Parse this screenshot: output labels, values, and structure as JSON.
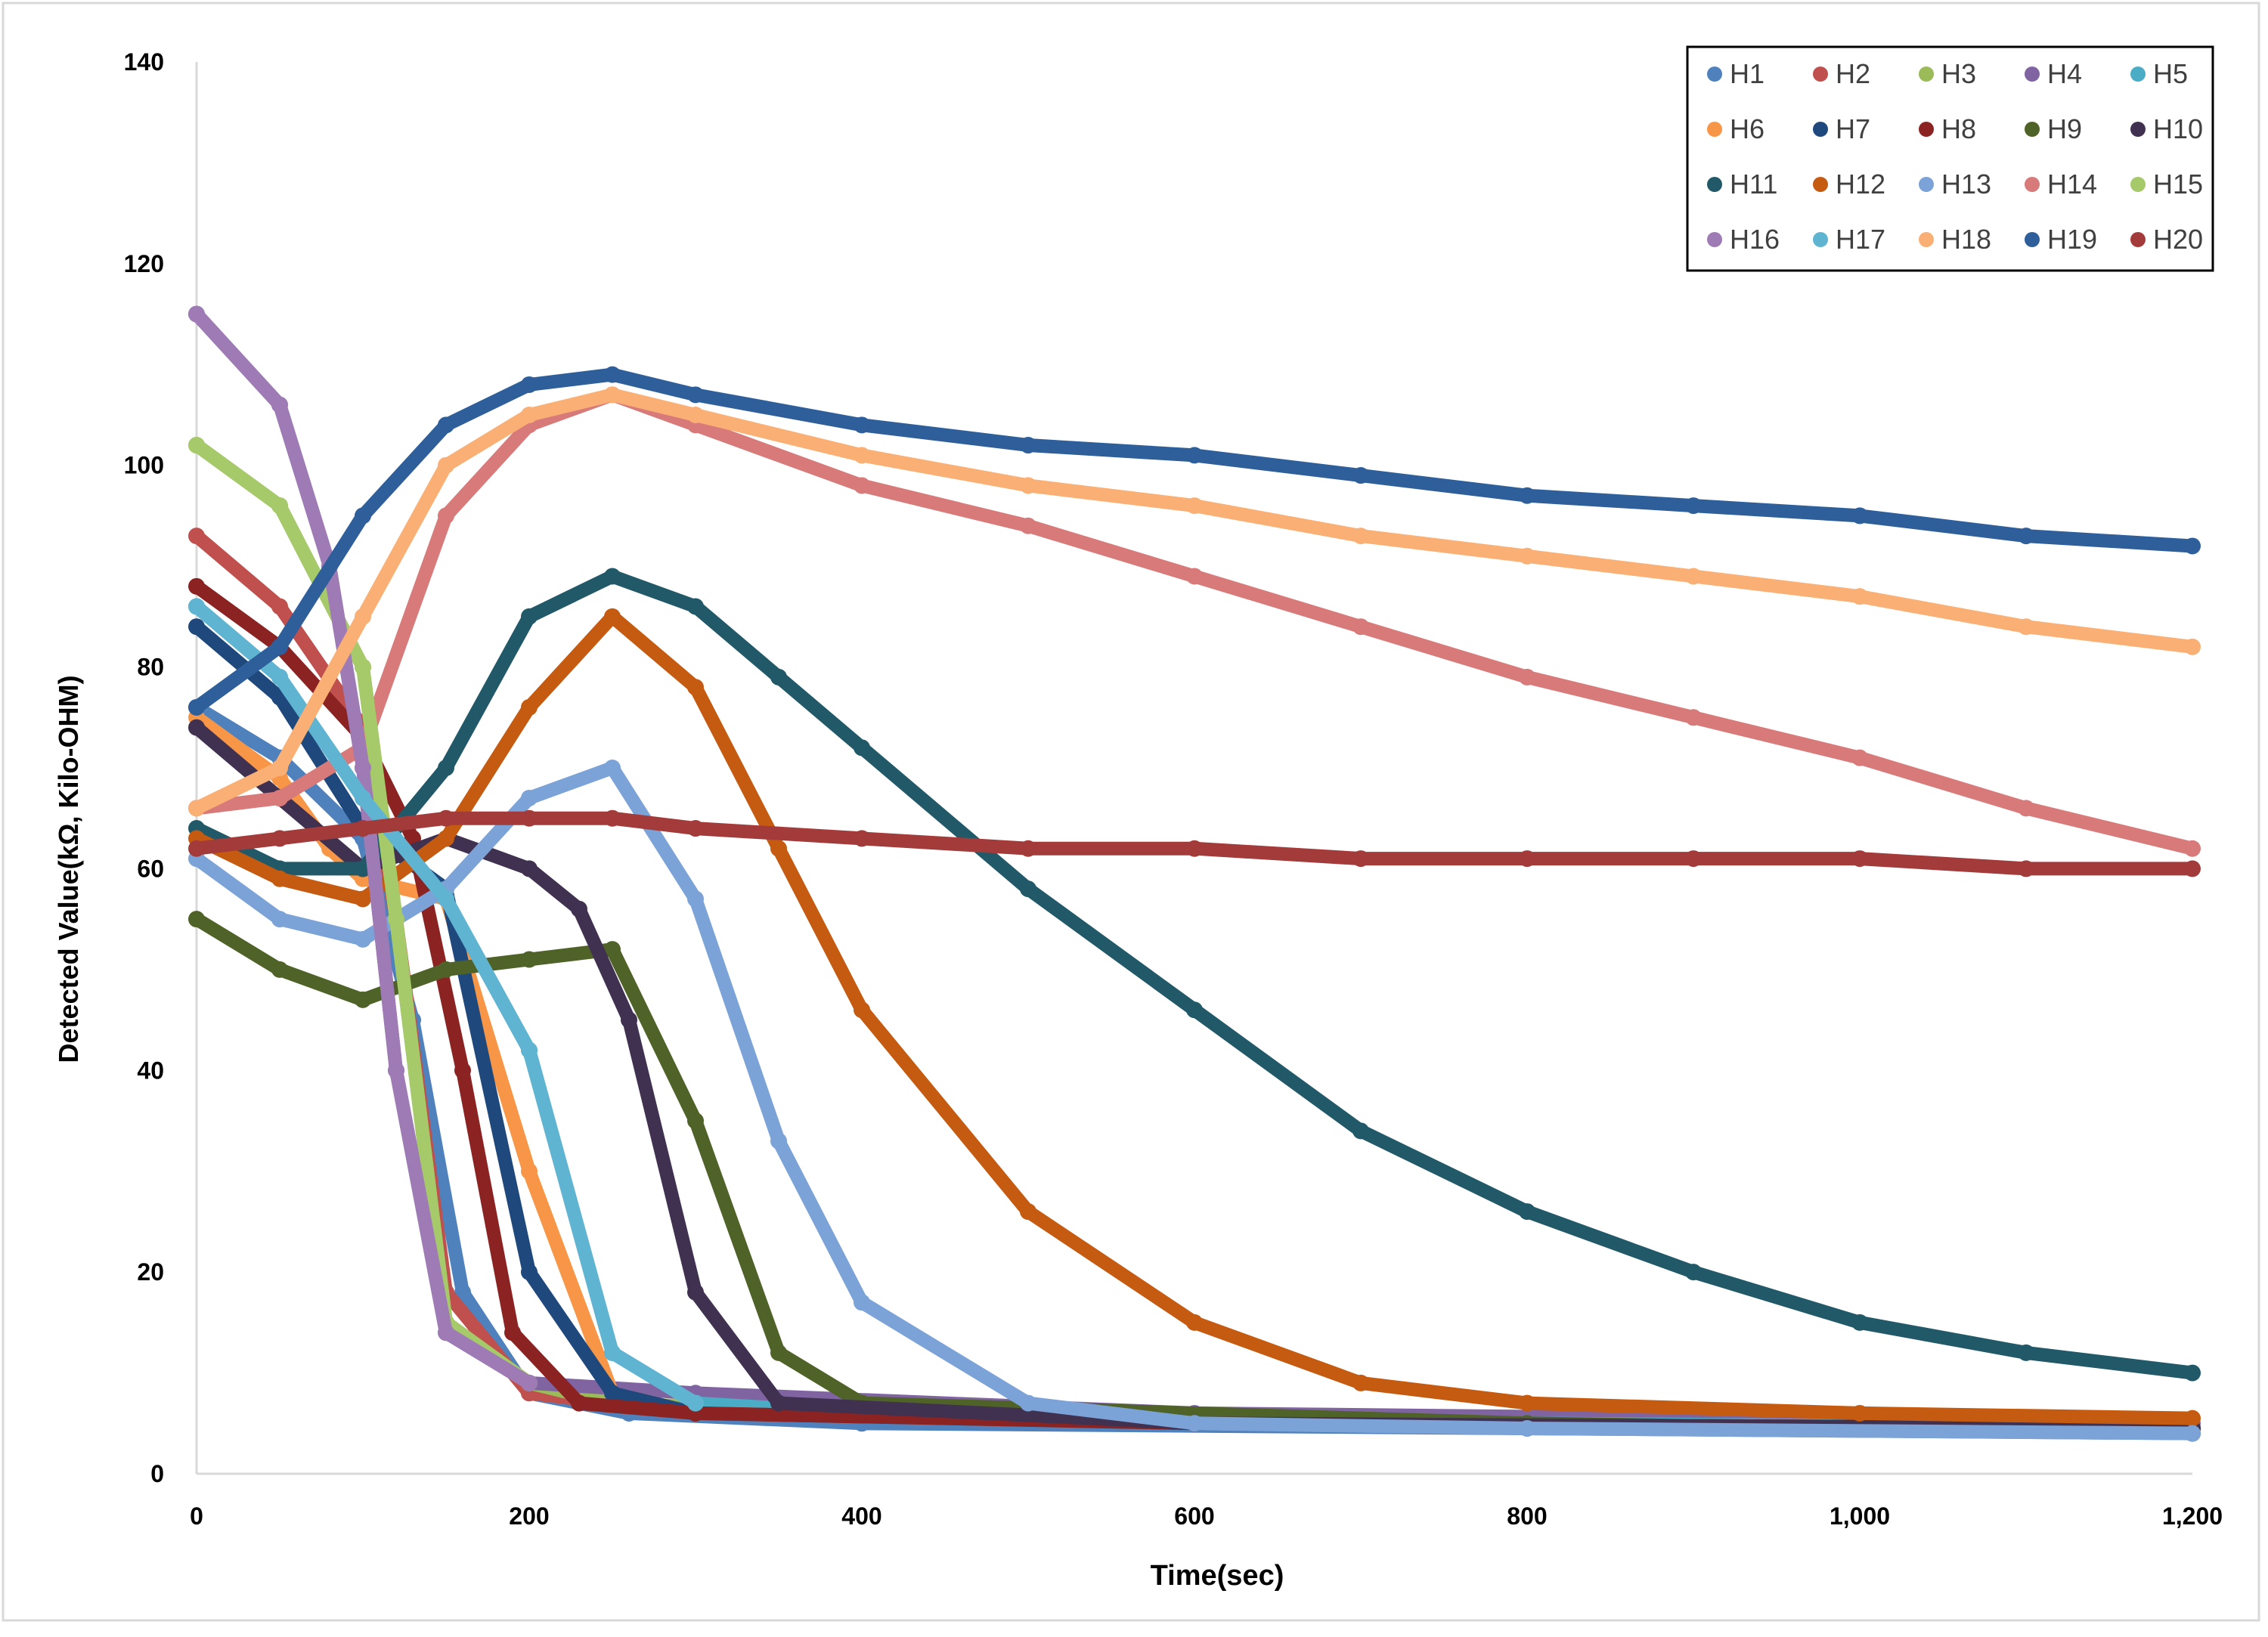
{
  "chart_data": {
    "type": "scatter",
    "title": "",
    "xlabel": "Time(sec)",
    "ylabel": "Detected Value(kΩ, Kilo-OHM)",
    "xlim": [
      0,
      1200
    ],
    "ylim": [
      0,
      140
    ],
    "x_ticks": [
      0,
      200,
      400,
      600,
      800,
      1000,
      1200
    ],
    "x_tick_labels": [
      "0",
      "200",
      "400",
      "600",
      "800",
      "1,000",
      "1,200"
    ],
    "y_ticks": [
      0,
      20,
      40,
      60,
      80,
      100,
      120,
      140
    ],
    "y_tick_labels": [
      "0",
      "20",
      "40",
      "60",
      "80",
      "100",
      "120",
      "140"
    ],
    "grid": false,
    "legend_position": "top-right",
    "series": [
      {
        "name": "H1",
        "color": "#4f81bd",
        "x": [
          0,
          50,
          100,
          130,
          160,
          200,
          260,
          400,
          800,
          1200
        ],
        "y": [
          76,
          71,
          63,
          45,
          18,
          8,
          6,
          5,
          4.5,
          4
        ]
      },
      {
        "name": "H2",
        "color": "#c0504d",
        "x": [
          0,
          50,
          100,
          120,
          150,
          200,
          250,
          400,
          800,
          1200
        ],
        "y": [
          93,
          86,
          74,
          55,
          18,
          8,
          7,
          6,
          5,
          4.5
        ]
      },
      {
        "name": "H3",
        "color": "#9bbb59",
        "x": [
          0,
          50,
          100,
          120,
          150,
          200,
          250,
          400,
          800,
          1200
        ],
        "y": [
          102,
          96,
          80,
          55,
          15,
          9,
          7,
          6,
          5,
          4.5
        ]
      },
      {
        "name": "H4",
        "color": "#8064a2",
        "x": [
          0,
          50,
          80,
          100,
          120,
          150,
          200,
          300,
          600,
          1200
        ],
        "y": [
          115,
          106,
          90,
          70,
          40,
          14,
          9,
          8,
          6,
          5
        ]
      },
      {
        "name": "H5",
        "color": "#4bacc6",
        "x": [
          0,
          50,
          100,
          150,
          200,
          250,
          300,
          400,
          800,
          1200
        ],
        "y": [
          86,
          79,
          67,
          57,
          42,
          12,
          7,
          6,
          5,
          4.5
        ]
      },
      {
        "name": "H6",
        "color": "#f79646",
        "x": [
          0,
          50,
          80,
          100,
          150,
          200,
          250,
          300,
          600,
          1200
        ],
        "y": [
          75,
          69,
          62,
          59,
          57,
          30,
          8,
          6,
          5,
          4.5
        ]
      },
      {
        "name": "H7",
        "color": "#1f497d",
        "x": [
          0,
          50,
          100,
          150,
          200,
          250,
          300,
          600,
          1200
        ],
        "y": [
          84,
          77,
          64,
          58,
          20,
          8,
          6,
          5,
          4.5
        ]
      },
      {
        "name": "H8",
        "color": "#8b2323",
        "x": [
          0,
          50,
          100,
          130,
          160,
          190,
          230,
          300,
          600,
          1200
        ],
        "y": [
          88,
          82,
          73,
          63,
          40,
          14,
          7,
          6,
          5,
          4.5
        ]
      },
      {
        "name": "H9",
        "color": "#4f6228",
        "x": [
          0,
          50,
          100,
          150,
          200,
          250,
          300,
          350,
          400,
          800,
          1200
        ],
        "y": [
          55,
          50,
          47,
          50,
          51,
          52,
          35,
          12,
          7,
          5,
          4
        ]
      },
      {
        "name": "H10",
        "color": "#403151",
        "x": [
          0,
          50,
          100,
          150,
          200,
          230,
          260,
          300,
          350,
          600,
          1200
        ],
        "y": [
          74,
          67,
          60,
          63,
          60,
          56,
          45,
          18,
          7,
          5,
          4.5
        ]
      },
      {
        "name": "H11",
        "color": "#215968",
        "x": [
          0,
          50,
          100,
          150,
          200,
          250,
          300,
          350,
          400,
          500,
          600,
          700,
          800,
          900,
          1000,
          1100,
          1200
        ],
        "y": [
          64,
          60,
          60,
          70,
          85,
          89,
          86,
          79,
          72,
          58,
          46,
          34,
          26,
          20,
          15,
          12,
          10
        ]
      },
      {
        "name": "H12",
        "color": "#c55a11",
        "x": [
          0,
          50,
          100,
          150,
          200,
          250,
          300,
          350,
          400,
          500,
          600,
          700,
          800,
          1000,
          1200
        ],
        "y": [
          63,
          59,
          57,
          63,
          76,
          85,
          78,
          62,
          46,
          26,
          15,
          9,
          7,
          6,
          5.5
        ]
      },
      {
        "name": "H13",
        "color": "#7ca3d8",
        "x": [
          0,
          50,
          100,
          150,
          200,
          250,
          300,
          350,
          400,
          500,
          600,
          800,
          1200
        ],
        "y": [
          61,
          55,
          53,
          58,
          67,
          70,
          57,
          33,
          17,
          7,
          5,
          4.5,
          4
        ]
      },
      {
        "name": "H14",
        "color": "#d97a7a",
        "x": [
          0,
          50,
          100,
          150,
          200,
          250,
          300,
          400,
          500,
          600,
          700,
          800,
          900,
          1000,
          1100,
          1200
        ],
        "y": [
          66,
          67,
          72,
          95,
          104,
          107,
          104,
          98,
          94,
          89,
          84,
          79,
          75,
          71,
          66,
          62
        ]
      },
      {
        "name": "H15",
        "color": "#a6c96a",
        "x": [
          0,
          50,
          100,
          120,
          150,
          200
        ],
        "y": [
          102,
          96,
          80,
          55,
          15,
          9
        ]
      },
      {
        "name": "H16",
        "color": "#9e7bb5",
        "x": [
          0,
          50,
          80,
          100,
          120,
          150,
          200
        ],
        "y": [
          115,
          106,
          90,
          70,
          40,
          14,
          9
        ]
      },
      {
        "name": "H17",
        "color": "#5fb4d1",
        "x": [
          0,
          50,
          100,
          150,
          200,
          250,
          300
        ],
        "y": [
          86,
          79,
          67,
          57,
          42,
          12,
          7
        ]
      },
      {
        "name": "H18",
        "color": "#fab075",
        "x": [
          0,
          50,
          100,
          150,
          200,
          250,
          300,
          400,
          500,
          600,
          700,
          800,
          900,
          1000,
          1100,
          1200
        ],
        "y": [
          66,
          70,
          85,
          100,
          105,
          107,
          105,
          101,
          98,
          96,
          93,
          91,
          89,
          87,
          84,
          82
        ]
      },
      {
        "name": "H19",
        "color": "#2e5f9a",
        "x": [
          0,
          50,
          100,
          150,
          200,
          250,
          300,
          400,
          500,
          600,
          700,
          800,
          900,
          1000,
          1100,
          1200
        ],
        "y": [
          76,
          82,
          95,
          104,
          108,
          109,
          107,
          104,
          102,
          101,
          99,
          97,
          96,
          95,
          93,
          92
        ]
      },
      {
        "name": "H20",
        "color": "#a33b3b",
        "x": [
          0,
          50,
          100,
          150,
          200,
          250,
          300,
          400,
          500,
          600,
          700,
          800,
          900,
          1000,
          1100,
          1200
        ],
        "y": [
          62,
          63,
          64,
          65,
          65,
          65,
          64,
          63,
          62,
          62,
          61,
          61,
          61,
          61,
          60,
          60
        ]
      }
    ]
  }
}
